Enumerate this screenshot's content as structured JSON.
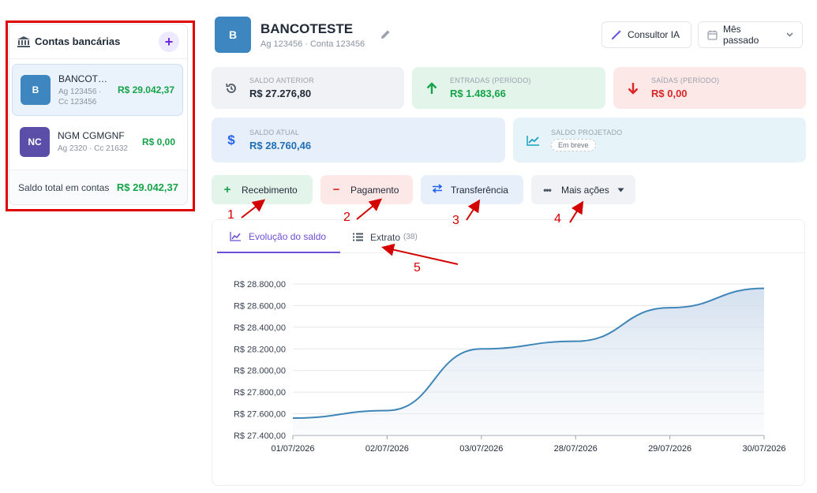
{
  "sidebar": {
    "title": "Contas bancárias",
    "add_label": "+",
    "accounts": [
      {
        "avatar": "B",
        "name": "BANCOTESTE",
        "agency": "Ag 123456 ·",
        "account": "Cc 123456",
        "balance": "R$ 29.042,37",
        "color": "#3e86c0"
      },
      {
        "avatar": "NC",
        "name": "NGM CGMGNF",
        "agency": "Ag 2320 · Cc 21632",
        "balance": "R$ 0,00",
        "color": "#5b4ea8"
      }
    ],
    "total_label": "Saldo total em contas",
    "total_value": "R$ 29.042,37"
  },
  "header": {
    "logo": "B",
    "bank_name": "BANCOTESTE",
    "bank_sub": "Ag 123456 · Conta 123456",
    "consultor_label": "Consultor IA",
    "period_label": "Mês passado"
  },
  "stats": {
    "saldo_anterior": {
      "label": "SALDO ANTERIOR",
      "value": "R$ 27.276,80"
    },
    "entradas": {
      "label": "ENTRADAS (PERÍODO)",
      "value": "R$ 1.483,66"
    },
    "saidas": {
      "label": "SAÍDAS (PERÍODO)",
      "value": "R$ 0,00"
    },
    "saldo_atual": {
      "label": "SALDO ATUAL",
      "value": "R$ 28.760,46"
    },
    "saldo_projetado": {
      "label": "SALDO PROJETADO",
      "badge": "Em breve"
    }
  },
  "actions": {
    "recebimento": "Recebimento",
    "pagamento": "Pagamento",
    "transferencia": "Transferência",
    "mais_acoes": "Mais ações"
  },
  "annotations": [
    "1",
    "2",
    "3",
    "4",
    "5"
  ],
  "tabs": {
    "evolucao": "Evolução do saldo",
    "extrato": "Extrato",
    "extrato_count": "(38)"
  },
  "colors": {
    "accent": "#6d4fd6",
    "green": "#16a34a",
    "red": "#dc2626",
    "blue": "#3e86c0",
    "annotation": "#d40000"
  },
  "chart_data": {
    "type": "area",
    "x": [
      "01/07/2026",
      "02/07/2026",
      "03/07/2026",
      "28/07/2026",
      "29/07/2026",
      "30/07/2026"
    ],
    "series": [
      {
        "values": [
          27560,
          27630,
          28200,
          28270,
          28580,
          28760
        ]
      }
    ],
    "y_ticks": [
      "R$ 27.400,00",
      "R$ 27.600,00",
      "R$ 27.800,00",
      "R$ 28.000,00",
      "R$ 28.200,00",
      "R$ 28.400,00",
      "R$ 28.600,00",
      "R$ 28.800,00"
    ],
    "ylim": [
      27400,
      28800
    ],
    "grid": true,
    "legend": "none"
  }
}
